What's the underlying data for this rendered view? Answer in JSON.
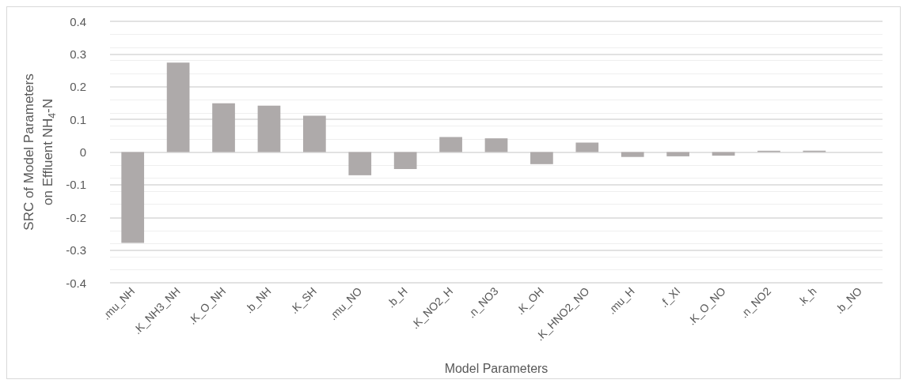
{
  "chart_data": {
    "type": "bar",
    "xlabel": "Model Parameters",
    "ylabel": "SRC of Model Parameters\non Effluent NH$_{4}$-N",
    "categories": [
      ".mu_NH",
      ".K_NH3_NH",
      ".K_O_NH",
      ".b_NH",
      ".K_SH",
      ".mu_NO",
      ".b_H",
      ".K_NO2_H",
      ".n_NO3",
      ".K_OH",
      ".K_HNO2_NO",
      ".mu_H",
      ".f_XI",
      ".K_O_NO",
      ".n_NO2",
      ".k_h",
      ".b_NO"
    ],
    "values": [
      -0.278,
      0.274,
      0.149,
      0.142,
      0.111,
      -0.071,
      -0.052,
      0.046,
      0.042,
      -0.037,
      0.029,
      -0.015,
      -0.013,
      -0.011,
      0.004,
      0.004,
      0
    ],
    "color": "#aeaaaa",
    "ylim": [
      -0.4,
      0.4
    ],
    "yticks": [
      -0.4,
      -0.3,
      -0.2,
      -0.1,
      0,
      0.1,
      0.2,
      0.3,
      0.4
    ],
    "grid": "y"
  }
}
